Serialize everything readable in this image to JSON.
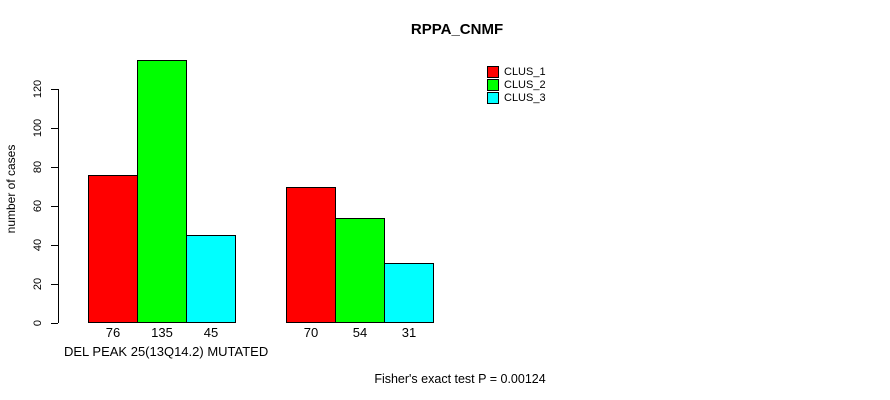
{
  "chart_data": {
    "type": "bar",
    "title": "RPPA_CNMF",
    "xlabel": "DEL PEAK 25(13Q14.2) MUTATED",
    "ylabel": "number of cases",
    "ylim": [
      0,
      135
    ],
    "yticks": [
      0,
      20,
      40,
      60,
      80,
      100,
      120
    ],
    "grid": false,
    "legend_position": "top-right",
    "categories": [
      "",
      ""
    ],
    "series": [
      {
        "name": "CLUS_1",
        "color": "#FF0000",
        "values": [
          76,
          70
        ]
      },
      {
        "name": "CLUS_2",
        "color": "#00FF00",
        "values": [
          135,
          54
        ]
      },
      {
        "name": "CLUS_3",
        "color": "#00FFFF",
        "values": [
          45,
          31
        ]
      }
    ],
    "bar_value_labels": [
      [
        "76",
        "135",
        "45"
      ],
      [
        "70",
        "54",
        "31"
      ]
    ],
    "annotation": "Fisher's exact test P = 0.00124"
  }
}
